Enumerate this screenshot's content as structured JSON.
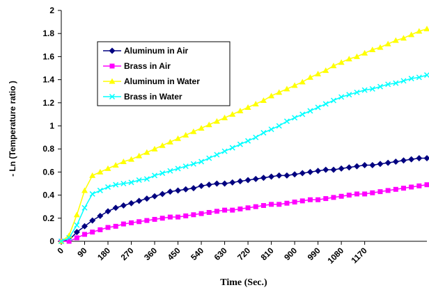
{
  "chart_data": {
    "type": "line",
    "x_label": "Time (Sec.)",
    "y_label": "- Ln (Temperature ratio )",
    "categories": [
      0,
      null,
      null,
      90,
      null,
      null,
      180,
      null,
      null,
      270,
      null,
      null,
      360,
      null,
      null,
      450,
      null,
      null,
      540,
      null,
      null,
      630,
      null,
      null,
      720,
      null,
      null,
      810,
      null,
      null,
      900,
      null,
      null,
      990,
      null,
      null,
      1080,
      null,
      null,
      1170,
      null,
      null,
      null,
      null,
      null,
      null,
      null,
      null
    ],
    "ylim": [
      0,
      2
    ],
    "yticks": [
      0,
      0.2,
      0.4,
      0.6,
      0.8,
      1,
      1.2,
      1.4,
      1.6,
      1.8,
      2
    ],
    "grid": false,
    "legend": "upper left",
    "series": [
      {
        "name": "Aluminum in Air",
        "color": "#000080",
        "marker": "diamond",
        "values": [
          0,
          0.01,
          0.08,
          0.13,
          0.18,
          0.22,
          0.26,
          0.29,
          0.31,
          0.33,
          0.35,
          0.37,
          0.39,
          0.41,
          0.43,
          0.44,
          0.45,
          0.46,
          0.48,
          0.49,
          0.5,
          0.5,
          0.51,
          0.52,
          0.53,
          0.54,
          0.55,
          0.56,
          0.57,
          0.57,
          0.58,
          0.59,
          0.6,
          0.61,
          0.62,
          0.62,
          0.63,
          0.64,
          0.65,
          0.66,
          0.66,
          0.67,
          0.68,
          0.69,
          0.7,
          0.71,
          0.72,
          0.72
        ]
      },
      {
        "name": "Brass in Air",
        "color": "#ff00ff",
        "marker": "square",
        "values": [
          0,
          0,
          0.03,
          0.06,
          0.08,
          0.1,
          0.12,
          0.13,
          0.15,
          0.16,
          0.17,
          0.18,
          0.19,
          0.2,
          0.21,
          0.21,
          0.22,
          0.23,
          0.24,
          0.25,
          0.26,
          0.27,
          0.27,
          0.28,
          0.29,
          0.3,
          0.31,
          0.32,
          0.32,
          0.33,
          0.34,
          0.35,
          0.36,
          0.36,
          0.37,
          0.38,
          0.39,
          0.4,
          0.41,
          0.41,
          0.42,
          0.43,
          0.44,
          0.45,
          0.46,
          0.47,
          0.48,
          0.49
        ]
      },
      {
        "name": "Aluminum in Water",
        "color": "#ffff00",
        "marker": "triangle",
        "values": [
          0,
          0.05,
          0.23,
          0.44,
          0.57,
          0.6,
          0.63,
          0.66,
          0.69,
          0.71,
          0.74,
          0.77,
          0.8,
          0.83,
          0.86,
          0.89,
          0.92,
          0.95,
          0.98,
          1.01,
          1.04,
          1.07,
          1.1,
          1.13,
          1.16,
          1.19,
          1.22,
          1.26,
          1.29,
          1.32,
          1.35,
          1.38,
          1.42,
          1.45,
          1.48,
          1.52,
          1.55,
          1.58,
          1.6,
          1.63,
          1.66,
          1.68,
          1.71,
          1.74,
          1.76,
          1.79,
          1.82,
          1.84
        ]
      },
      {
        "name": "Brass in Water",
        "color": "#00ffff",
        "marker": "x",
        "values": [
          0,
          0.03,
          0.14,
          0.29,
          0.41,
          0.44,
          0.47,
          0.49,
          0.5,
          0.51,
          0.53,
          0.54,
          0.57,
          0.59,
          0.61,
          0.63,
          0.65,
          0.67,
          0.69,
          0.72,
          0.75,
          0.78,
          0.81,
          0.84,
          0.87,
          0.9,
          0.94,
          0.97,
          1.0,
          1.04,
          1.07,
          1.1,
          1.13,
          1.16,
          1.19,
          1.22,
          1.25,
          1.27,
          1.29,
          1.31,
          1.32,
          1.34,
          1.36,
          1.37,
          1.39,
          1.41,
          1.42,
          1.44
        ]
      }
    ]
  }
}
